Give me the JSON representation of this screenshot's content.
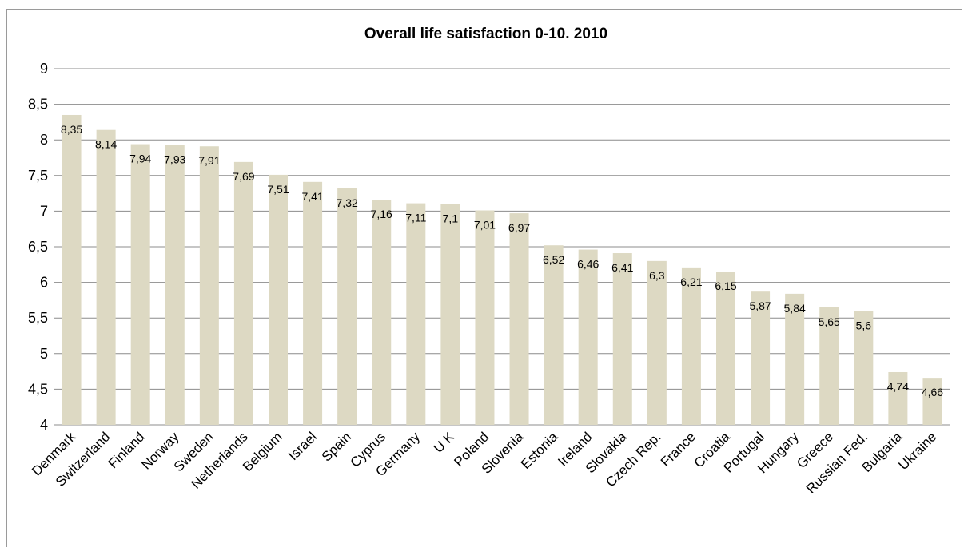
{
  "chart_data": {
    "type": "bar",
    "title": "Overall life satisfaction 0-10. 2010",
    "xlabel": "",
    "ylabel": "",
    "categories": [
      "Denmark",
      "Switzerland",
      "Finland",
      "Norway",
      "Sweden",
      "Netherlands",
      "Belgium",
      "Israel",
      "Spain",
      "Cyprus",
      "Germany",
      "U K",
      "Poland",
      "Slovenia",
      "Estonia",
      "Ireland",
      "Slovakia",
      "Czech Rep.",
      "France",
      "Croatia",
      "Portugal",
      "Hungary",
      "Greece",
      "Russian Fed.",
      "Bulgaria",
      "Ukraine"
    ],
    "values": [
      8.35,
      8.14,
      7.94,
      7.93,
      7.91,
      7.69,
      7.51,
      7.41,
      7.32,
      7.16,
      7.11,
      7.1,
      7.01,
      6.97,
      6.52,
      6.46,
      6.41,
      6.3,
      6.21,
      6.15,
      5.87,
      5.84,
      5.65,
      5.6,
      4.74,
      4.66
    ],
    "value_labels": [
      "8,35",
      "8,14",
      "7,94",
      "7,93",
      "7,91",
      "7,69",
      "7,51",
      "7,41",
      "7,32",
      "7,16",
      "7,11",
      "7,1",
      "7,01",
      "6,97",
      "6,52",
      "6,46",
      "6,41",
      "6,3",
      "6,21",
      "6,15",
      "5,87",
      "5,84",
      "5,65",
      "5,6",
      "4,74",
      "4,66"
    ],
    "ylim": [
      4,
      9
    ],
    "yticks": [
      4,
      4.5,
      5,
      5.5,
      6,
      6.5,
      7,
      7.5,
      8,
      8.5,
      9
    ],
    "ytick_labels": [
      "4",
      "4,5",
      "5",
      "5,5",
      "6",
      "6,5",
      "7",
      "7,5",
      "8",
      "8,5",
      "9"
    ],
    "grid": true,
    "bar_color": "#ddd9c3"
  }
}
